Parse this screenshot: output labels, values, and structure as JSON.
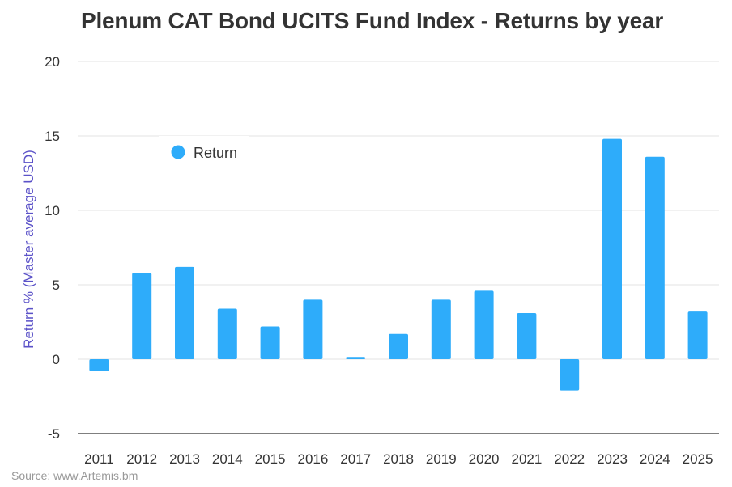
{
  "chart_data": {
    "type": "bar",
    "title": "Plenum CAT Bond UCITS Fund Index - Returns by year",
    "ylabel": "Return % (Master average USD)",
    "xlabel": "",
    "ylim": [
      -5,
      20
    ],
    "yticks": [
      20,
      15,
      10,
      5,
      0,
      -5
    ],
    "grid": true,
    "legend_position": "top-left",
    "categories": [
      "2011",
      "2012",
      "2013",
      "2014",
      "2015",
      "2016",
      "2017",
      "2018",
      "2019",
      "2020",
      "2021",
      "2022",
      "2023",
      "2024",
      "2025"
    ],
    "series": [
      {
        "name": "Return",
        "color": "#2eacfa",
        "values": [
          -0.8,
          5.8,
          6.2,
          3.4,
          2.2,
          4.0,
          0.15,
          1.7,
          4.0,
          4.6,
          3.1,
          -2.1,
          14.8,
          13.6,
          3.2
        ]
      }
    ]
  },
  "source": "Source: www.Artemis.bm"
}
